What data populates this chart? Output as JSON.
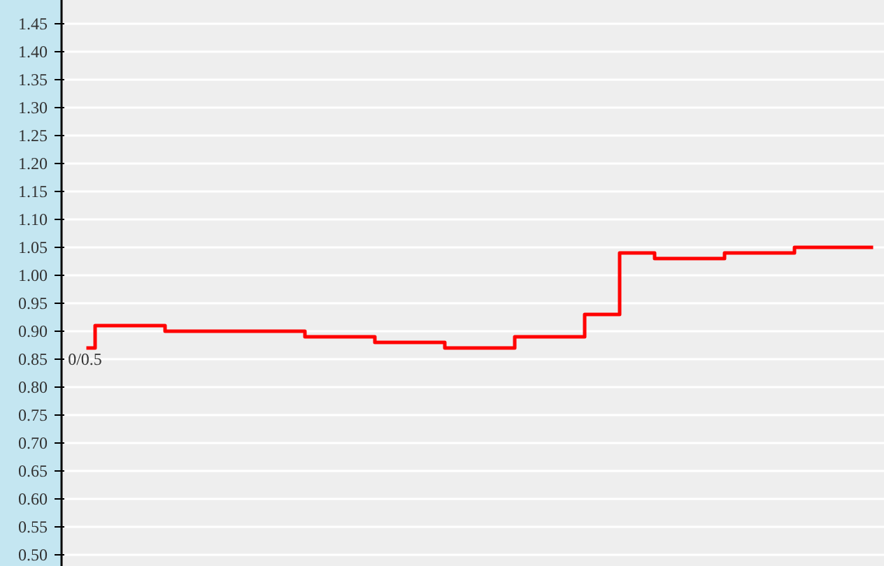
{
  "chart_data": {
    "type": "step",
    "categories": [
      null,
      null,
      null,
      null,
      null,
      null,
      null,
      null,
      null,
      null,
      null,
      null,
      null,
      null,
      null,
      null,
      null,
      null,
      null,
      null,
      null,
      null,
      null,
      null,
      null,
      null,
      null,
      null,
      null,
      null,
      null,
      null,
      null,
      null,
      null,
      null,
      null,
      null,
      null,
      null,
      null,
      null,
      null,
      null,
      null,
      null
    ],
    "series": [
      {
        "color": "#ff0000",
        "values": [
          0.87,
          0.91,
          0.91,
          0.91,
          0.91,
          0.9,
          0.9,
          0.9,
          0.9,
          0.9,
          0.9,
          0.9,
          0.9,
          0.89,
          0.89,
          0.89,
          0.89,
          0.88,
          0.88,
          0.88,
          0.88,
          0.87,
          0.87,
          0.87,
          0.87,
          0.89,
          0.89,
          0.89,
          0.89,
          0.93,
          0.93,
          1.04,
          1.04,
          1.03,
          1.03,
          1.03,
          1.03,
          1.04,
          1.04,
          1.04,
          1.04,
          1.05,
          1.05,
          1.05,
          1.05,
          1.05
        ]
      }
    ],
    "ylim": [
      0.48,
      1.4925
    ],
    "yticks": [
      {
        "value": 0.5,
        "label": "0.50"
      },
      {
        "value": 0.55,
        "label": "0.55"
      },
      {
        "value": 0.6,
        "label": "0.60"
      },
      {
        "value": 0.65,
        "label": "0.65"
      },
      {
        "value": 0.7,
        "label": "0.70"
      },
      {
        "value": 0.75,
        "label": "0.75"
      },
      {
        "value": 0.8,
        "label": "0.80"
      },
      {
        "value": 0.85,
        "label": "0.85"
      },
      {
        "value": 0.9,
        "label": "0.90"
      },
      {
        "value": 0.95,
        "label": "0.95"
      },
      {
        "value": 1.0,
        "label": "1.00"
      },
      {
        "value": 1.05,
        "label": "1.05"
      },
      {
        "value": 1.1,
        "label": "1.10"
      },
      {
        "value": 1.15,
        "label": "1.15"
      },
      {
        "value": 1.2,
        "label": "1.20"
      },
      {
        "value": 1.25,
        "label": "1.25"
      },
      {
        "value": 1.3,
        "label": "1.30"
      },
      {
        "value": 1.35,
        "label": "1.35"
      },
      {
        "value": 1.4,
        "label": "1.40"
      },
      {
        "value": 1.45,
        "label": "1.45"
      }
    ],
    "grid": "y",
    "tick_labels": "y",
    "annotations": [
      "0/0.5"
    ]
  }
}
